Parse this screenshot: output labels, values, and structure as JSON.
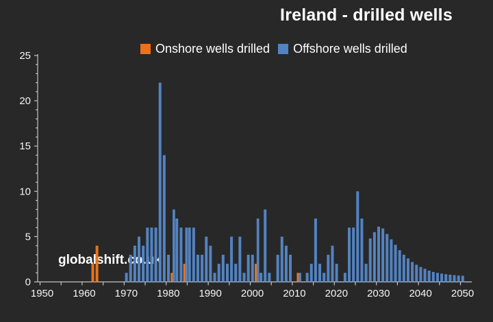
{
  "title": "Ireland - drilled wells",
  "watermark": "globalshift.co.uk",
  "colors": {
    "background": "#282828",
    "onshore": "#E8731C",
    "offshore": "#5383C1",
    "axis": "#C4C4C4",
    "label_text": "#F5F5F5"
  },
  "legend": [
    {
      "label": "Onshore wells drilled",
      "color_key": "onshore"
    },
    {
      "label": "Offshore wells drilled",
      "color_key": "offshore"
    }
  ],
  "chart_data": {
    "type": "bar",
    "title": "Ireland - drilled wells",
    "xlabel": "",
    "ylabel": "",
    "xlim": [
      1950,
      2050
    ],
    "ylim": [
      0,
      25
    ],
    "grid": false,
    "legend_position": "top",
    "y_ticks": [
      0,
      5,
      10,
      15,
      20,
      25
    ],
    "y_minor_tick_step": 1,
    "x_tick_step_years": 5,
    "x_labels": [
      1950,
      1960,
      1970,
      1980,
      1990,
      2000,
      2010,
      2020,
      2030,
      2040,
      2050
    ],
    "x": [
      1962,
      1963,
      1964,
      1965,
      1966,
      1967,
      1968,
      1969,
      1970,
      1971,
      1972,
      1973,
      1974,
      1975,
      1976,
      1977,
      1978,
      1979,
      1980,
      1981,
      1982,
      1983,
      1984,
      1985,
      1986,
      1987,
      1988,
      1989,
      1990,
      1991,
      1992,
      1993,
      1994,
      1995,
      1996,
      1997,
      1998,
      1999,
      2000,
      2001,
      2002,
      2003,
      2004,
      2005,
      2006,
      2007,
      2008,
      2009,
      2010,
      2011,
      2012,
      2013,
      2014,
      2015,
      2016,
      2017,
      2018,
      2019,
      2020,
      2021,
      2022,
      2023,
      2024,
      2025,
      2026,
      2027,
      2028,
      2029,
      2030,
      2031,
      2032,
      2033,
      2034,
      2035,
      2036,
      2037,
      2038,
      2039,
      2040,
      2041,
      2042,
      2043,
      2044,
      2045,
      2046,
      2047,
      2048,
      2049,
      2050
    ],
    "series": [
      {
        "name": "Onshore wells drilled",
        "values": [
          2,
          4,
          0,
          0,
          0,
          0,
          0,
          0,
          0,
          0,
          0,
          0,
          0,
          0,
          0,
          0,
          0,
          0,
          0,
          1,
          0,
          0,
          2,
          0,
          0,
          0,
          0,
          0,
          0,
          0,
          0,
          0,
          0,
          0,
          0,
          0,
          0,
          0,
          0,
          2,
          0,
          0,
          0,
          0,
          0,
          0,
          0,
          0,
          0,
          1,
          0,
          0,
          0,
          0,
          0,
          0,
          0,
          0,
          0,
          0,
          0,
          0,
          0,
          0,
          0,
          0,
          0,
          0,
          0,
          0,
          0,
          0,
          0,
          0,
          0,
          0,
          0,
          0,
          0,
          0,
          0,
          0,
          0,
          0,
          0,
          0,
          0,
          0,
          0
        ]
      },
      {
        "name": "Offshore wells drilled",
        "values": [
          0,
          0,
          0,
          0,
          0,
          0,
          0,
          0,
          1,
          3,
          4,
          5,
          4,
          6,
          6,
          6,
          22,
          14,
          3,
          8,
          7,
          6,
          6,
          6,
          6,
          3,
          3,
          5,
          4,
          1,
          2,
          3,
          2,
          5,
          2,
          5,
          1,
          3,
          3,
          7,
          1,
          8,
          1,
          0,
          3,
          5,
          4,
          3,
          0,
          1,
          0,
          1,
          2,
          7,
          2,
          1,
          3,
          4,
          2,
          0,
          1,
          6,
          6,
          10,
          7,
          2,
          4.8,
          5.5,
          6.1,
          5.9,
          5.3,
          4.7,
          4.1,
          3.5,
          3,
          2.6,
          2.2,
          1.9,
          1.65,
          1.45,
          1.25,
          1.1,
          1,
          0.92,
          0.85,
          0.8,
          0.75,
          0.7,
          0.68
        ]
      }
    ]
  }
}
